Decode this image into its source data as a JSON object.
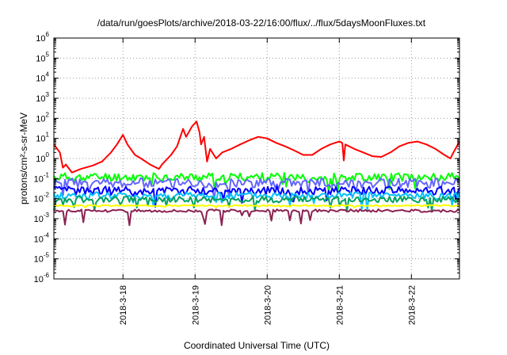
{
  "chart_data": {
    "type": "line",
    "title": "/data/run/goesPlots/archive/2018-03-22/16:00/flux/../flux/5daysMoonFluxes.txt",
    "xlabel": "Coordinated Universal Time (UTC)",
    "ylabel": "protons/cm²-s-sr-MeV",
    "yscale": "log",
    "ylim": [
      1e-06,
      1000000.0
    ],
    "xlim": [
      "2018-03-17 01:00",
      "2018-03-22 16:00"
    ],
    "grid": true,
    "y_ticks": [
      {
        "base": "10",
        "exp": "-6"
      },
      {
        "base": "10",
        "exp": "-5"
      },
      {
        "base": "10",
        "exp": "-4"
      },
      {
        "base": "10",
        "exp": "-3"
      },
      {
        "base": "10",
        "exp": "-2"
      },
      {
        "base": "10",
        "exp": "-1"
      },
      {
        "base": "10",
        "exp": "0"
      },
      {
        "base": "10",
        "exp": "1"
      },
      {
        "base": "10",
        "exp": "2"
      },
      {
        "base": "10",
        "exp": "3"
      },
      {
        "base": "10",
        "exp": "4"
      },
      {
        "base": "10",
        "exp": "5"
      },
      {
        "base": "10",
        "exp": "6"
      }
    ],
    "x_ticks": [
      {
        "label": "2018-3-18",
        "date": "2018-03-18 00:00"
      },
      {
        "label": "2018-3-19",
        "date": "2018-03-19 00:00"
      },
      {
        "label": "2018-3-20",
        "date": "2018-03-20 00:00"
      },
      {
        "label": "2018-3-21",
        "date": "2018-03-21 00:00"
      },
      {
        "label": "2018-3-22",
        "date": "2018-03-22 00:00"
      }
    ],
    "series": [
      {
        "color": "#ff0000",
        "points": [
          [
            "2018-03-17 01:00",
            5
          ],
          [
            "2018-03-17 03:00",
            2
          ],
          [
            "2018-03-17 04:00",
            0.35
          ],
          [
            "2018-03-17 05:00",
            0.5
          ],
          [
            "2018-03-17 07:00",
            0.2
          ],
          [
            "2018-03-17 10:00",
            0.3
          ],
          [
            "2018-03-17 14:00",
            0.45
          ],
          [
            "2018-03-17 17:00",
            0.7
          ],
          [
            "2018-03-17 20:00",
            2
          ],
          [
            "2018-03-17 22:00",
            5
          ],
          [
            "2018-03-18 00:00",
            15
          ],
          [
            "2018-03-18 01:30",
            5
          ],
          [
            "2018-03-18 04:00",
            1.5
          ],
          [
            "2018-03-18 06:00",
            1
          ],
          [
            "2018-03-18 09:00",
            0.5
          ],
          [
            "2018-03-18 12:00",
            0.3
          ],
          [
            "2018-03-18 13:00",
            0.5
          ],
          [
            "2018-03-18 16:00",
            1.5
          ],
          [
            "2018-03-18 18:00",
            4
          ],
          [
            "2018-03-18 20:00",
            30
          ],
          [
            "2018-03-18 21:00",
            12
          ],
          [
            "2018-03-18 23:00",
            40
          ],
          [
            "2018-03-19 00:30",
            70
          ],
          [
            "2018-03-19 01:30",
            20
          ],
          [
            "2018-03-19 02:00",
            5
          ],
          [
            "2018-03-19 03:00",
            12
          ],
          [
            "2018-03-19 04:00",
            0.7
          ],
          [
            "2018-03-19 05:00",
            3
          ],
          [
            "2018-03-19 07:00",
            1
          ],
          [
            "2018-03-19 09:00",
            2
          ],
          [
            "2018-03-19 12:00",
            3
          ],
          [
            "2018-03-19 15:00",
            5
          ],
          [
            "2018-03-19 18:00",
            8
          ],
          [
            "2018-03-19 21:00",
            12
          ],
          [
            "2018-03-20 00:00",
            10
          ],
          [
            "2018-03-20 03:00",
            6
          ],
          [
            "2018-03-20 06:00",
            4
          ],
          [
            "2018-03-20 09:00",
            2.5
          ],
          [
            "2018-03-20 12:00",
            1.5
          ],
          [
            "2018-03-20 15:00",
            1.5
          ],
          [
            "2018-03-20 18:00",
            3
          ],
          [
            "2018-03-20 21:00",
            5
          ],
          [
            "2018-03-21 00:00",
            7
          ],
          [
            "2018-03-21 01:00",
            6
          ],
          [
            "2018-03-21 01:30",
            0.8
          ],
          [
            "2018-03-21 02:00",
            5
          ],
          [
            "2018-03-21 05:00",
            3
          ],
          [
            "2018-03-21 08:00",
            2
          ],
          [
            "2018-03-21 11:00",
            1.3
          ],
          [
            "2018-03-21 14:00",
            1.2
          ],
          [
            "2018-03-21 17:00",
            2
          ],
          [
            "2018-03-21 20:00",
            4
          ],
          [
            "2018-03-21 23:00",
            6
          ],
          [
            "2018-03-22 02:00",
            7
          ],
          [
            "2018-03-22 05:00",
            5
          ],
          [
            "2018-03-22 08:00",
            3
          ],
          [
            "2018-03-22 11:00",
            1.5
          ],
          [
            "2018-03-22 13:00",
            1
          ],
          [
            "2018-03-22 14:00",
            2
          ],
          [
            "2018-03-22 16:00",
            7
          ]
        ]
      },
      {
        "color": "#00ff00",
        "base": 0.12,
        "amp": 0.35,
        "drops": 0.55,
        "seed": 11
      },
      {
        "color": "#6666ff",
        "base": 0.06,
        "amp": 0.4,
        "drops": 0.5,
        "seed": 23
      },
      {
        "color": "#0000ff",
        "base": 0.025,
        "amp": 0.35,
        "drops": 0.5,
        "seed": 37
      },
      {
        "color": "#00c0ff",
        "base": 0.014,
        "amp": 0.3,
        "drops": 0.45,
        "seed": 41
      },
      {
        "color": "#00a060",
        "base": 0.009,
        "amp": 0.25,
        "drops": 0.4,
        "seed": 53
      },
      {
        "color": "#ffff00",
        "base": 0.0045,
        "amp": 0.05,
        "drops": 0.05,
        "seed": 67
      },
      {
        "color": "#8b2252",
        "base": 0.0025,
        "amp": 0.12,
        "drops": 0.55,
        "seed": 79
      }
    ]
  }
}
